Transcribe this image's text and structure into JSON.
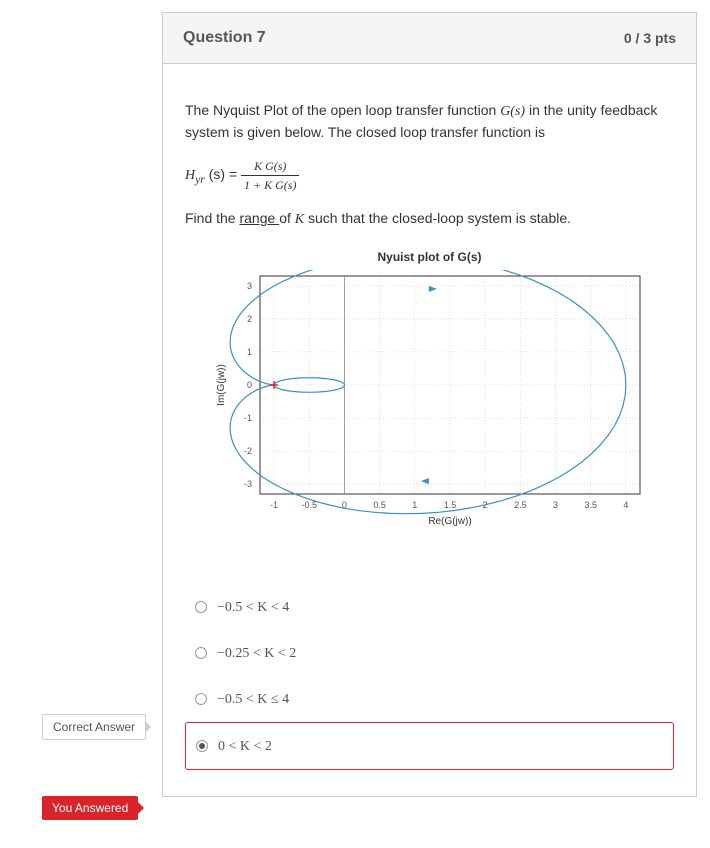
{
  "header": {
    "title": "Question 7",
    "points": "0 / 3 pts"
  },
  "prompt": {
    "line1a": "The Nyquist Plot of the open loop transfer function ",
    "gs": "G(s)",
    "line1b": " in the unity feedback system is given below. The closed loop transfer function is",
    "hyr": "H",
    "hyr_sub": "yr",
    "hyr_arg": "(s)  = ",
    "frac_num": "K G(s)",
    "frac_den": "1 + K G(s)",
    "line3a": "Find the ",
    "range": "range ",
    "line3b": "of   ",
    "K": "K",
    "line3c": "  such that the closed-loop system is stable."
  },
  "plot": {
    "title": "Nyuist plot of G(s)",
    "ylabel": "Im(G(jw))",
    "xlabel": "Re(G(jw))",
    "xticks": [
      "-1",
      "-0.5",
      "0",
      "0.5",
      "1",
      "1.5",
      "2",
      "2.5",
      "3",
      "3.5",
      "4"
    ],
    "yticks": [
      "3",
      "2",
      "1",
      "0",
      "-1",
      "-2",
      "-3"
    ],
    "curve_color": "#3a8fc9",
    "frame_color": "#333333",
    "grid_color": "#cccccc",
    "bg_color": "#ffffff",
    "marker_cross_color": "#d9242a",
    "xlim": [
      -1.2,
      4.2
    ],
    "ylim": [
      -3.3,
      3.3
    ]
  },
  "options": [
    {
      "text": "−0.5  <  K  <  4",
      "selected": false
    },
    {
      "text": "−0.25  <  K  <  2",
      "selected": false,
      "correct": true
    },
    {
      "text": "−0.5  <  K  ≤  4",
      "selected": false
    },
    {
      "text": "0  <  K  <  2",
      "selected": true
    }
  ],
  "badges": {
    "correct": "Correct Answer",
    "you": "You Answered"
  }
}
